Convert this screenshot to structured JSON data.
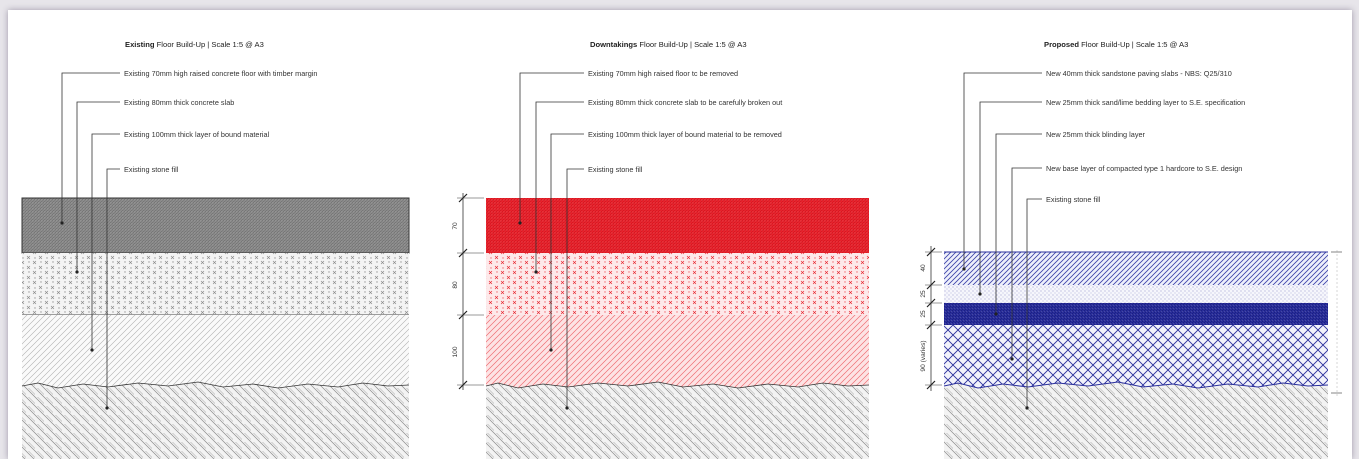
{
  "panels": {
    "existing": {
      "title_bold": "Existing",
      "title_rest": " Floor Build-Up | Scale 1:5 @ A3",
      "labels": [
        "Existing 70mm high raised concrete floor with timber margin",
        "Existing 80mm thick concrete slab",
        "Existing 100mm thick layer of bound material",
        "Existing stone fill"
      ]
    },
    "downtakings": {
      "title_bold": "Downtakings",
      "title_rest": " Floor Build-Up | Scale 1:5 @ A3",
      "labels": [
        "Existing 70mm high raised floor tc be removed",
        "Existing 80mm thick concrete slab to be carefully broken out",
        "Existing 100mm thick layer of bound material to be removed",
        "Existing stone fill"
      ],
      "dimensions": [
        "70",
        "80",
        "100"
      ]
    },
    "proposed": {
      "title_bold": "Proposed",
      "title_rest": " Floor Build-Up | Scale 1:5 @ A3",
      "labels": [
        "New 40mm thick sandstone paving slabs - NBS: Q25/310",
        "New 25mm thick sand/lime bedding layer to S.E. specification",
        "New 25mm thick blinding layer",
        "New base layer of compacted type 1 hardcore to S.E. design",
        "Existing stone fill"
      ],
      "dimensions": [
        "40",
        "25",
        "25",
        "90 (varies)"
      ]
    }
  },
  "colors": {
    "existing_concrete": "#8a8a8a",
    "demolition_red": "#e8212b",
    "demolition_pink": "#f0a8ac",
    "proposed_blue": "#2a2f9c",
    "hatch_grey": "#555555"
  }
}
